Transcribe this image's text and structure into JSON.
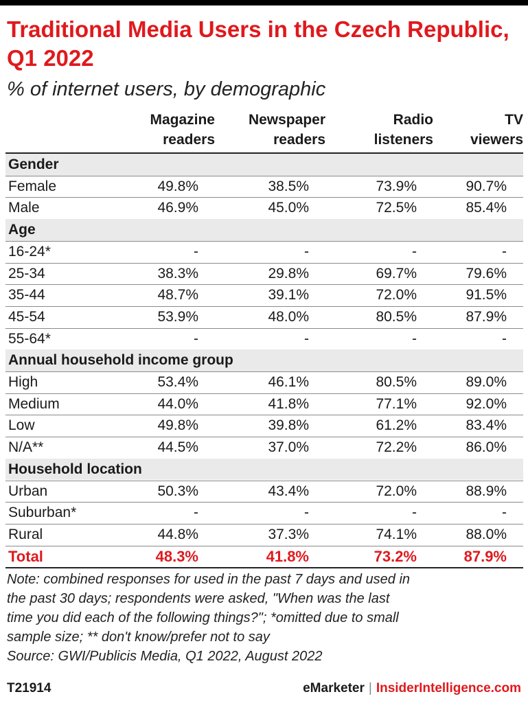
{
  "title": "Traditional Media Users in the Czech Republic, Q1 2022",
  "subtitle": "% of internet users, by demographic",
  "colors": {
    "accent": "#e0191d",
    "band": "#eaeaea",
    "text": "#1a1a1a"
  },
  "chart_data": {
    "type": "table",
    "columns": [
      {
        "line1": "Magazine",
        "line2": "readers"
      },
      {
        "line1": "Newspaper",
        "line2": "readers"
      },
      {
        "line1": "Radio",
        "line2": "listeners"
      },
      {
        "line1": "TV",
        "line2": "viewers"
      }
    ],
    "rows": [
      {
        "kind": "section",
        "label": "Gender"
      },
      {
        "kind": "data",
        "label": "Female",
        "values": [
          "49.8%",
          "38.5%",
          "73.9%",
          "90.7%"
        ]
      },
      {
        "kind": "data",
        "label": "Male",
        "values": [
          "46.9%",
          "45.0%",
          "72.5%",
          "85.4%"
        ]
      },
      {
        "kind": "section",
        "label": "Age"
      },
      {
        "kind": "data",
        "label": "16-24*",
        "values": [
          "-",
          "-",
          "-",
          "-"
        ]
      },
      {
        "kind": "data",
        "label": "25-34",
        "values": [
          "38.3%",
          "29.8%",
          "69.7%",
          "79.6%"
        ]
      },
      {
        "kind": "data",
        "label": "35-44",
        "values": [
          "48.7%",
          "39.1%",
          "72.0%",
          "91.5%"
        ]
      },
      {
        "kind": "data",
        "label": "45-54",
        "values": [
          "53.9%",
          "48.0%",
          "80.5%",
          "87.9%"
        ]
      },
      {
        "kind": "data",
        "label": "55-64*",
        "values": [
          "-",
          "-",
          "-",
          "-"
        ]
      },
      {
        "kind": "section",
        "label": "Annual household income group"
      },
      {
        "kind": "data",
        "label": "High",
        "values": [
          "53.4%",
          "46.1%",
          "80.5%",
          "89.0%"
        ]
      },
      {
        "kind": "data",
        "label": "Medium",
        "values": [
          "44.0%",
          "41.8%",
          "77.1%",
          "92.0%"
        ]
      },
      {
        "kind": "data",
        "label": "Low",
        "values": [
          "49.8%",
          "39.8%",
          "61.2%",
          "83.4%"
        ]
      },
      {
        "kind": "data",
        "label": "N/A**",
        "values": [
          "44.5%",
          "37.0%",
          "72.2%",
          "86.0%"
        ]
      },
      {
        "kind": "section",
        "label": "Household location"
      },
      {
        "kind": "data",
        "label": "Urban",
        "values": [
          "50.3%",
          "43.4%",
          "72.0%",
          "88.9%"
        ]
      },
      {
        "kind": "data",
        "label": "Suburban*",
        "values": [
          "-",
          "-",
          "-",
          "-"
        ]
      },
      {
        "kind": "data",
        "label": "Rural",
        "values": [
          "44.8%",
          "37.3%",
          "74.1%",
          "88.0%"
        ]
      },
      {
        "kind": "total",
        "label": "Total",
        "values": [
          "48.3%",
          "41.8%",
          "73.2%",
          "87.9%"
        ]
      }
    ]
  },
  "note_lines": [
    "Note: combined responses for used in the past 7 days and used in",
    "the past 30 days; respondents were asked, \"When was the last",
    "time you did each of the following things?\"; *omitted due to small",
    "sample size; ** don't know/prefer not to say",
    "Source: GWI/Publicis Media, Q1 2022, August 2022"
  ],
  "footer": {
    "id": "T21914",
    "brand": "eMarketer",
    "separator": "|",
    "brand2": "InsiderIntelligence.com"
  }
}
